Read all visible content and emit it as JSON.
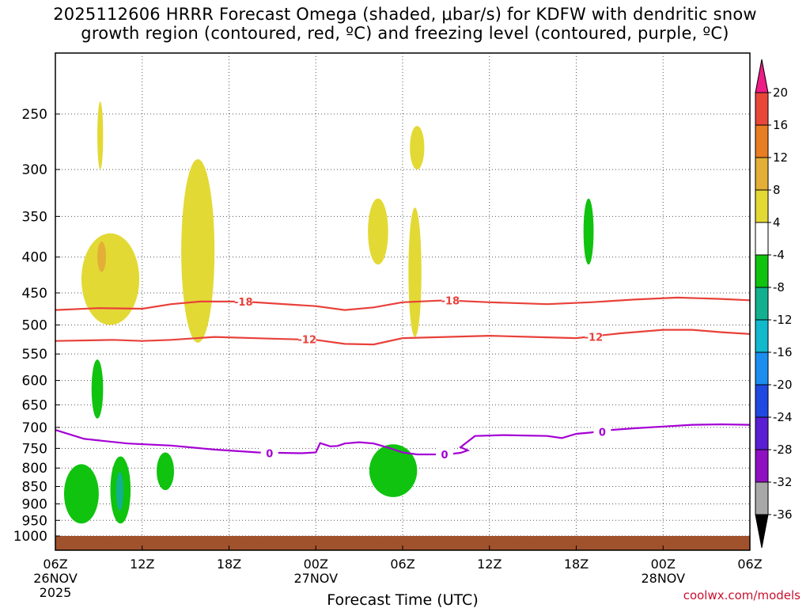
{
  "title": "2025112606 HRRR Forecast Omega (shaded, μbar/s) for KDFW with dendritic snow\ngrowth region (contoured, red, ºC) and freezing level (contoured, purple, ºC)",
  "credit": "coolwx.com/models",
  "chart_data": {
    "type": "time-height cross-section",
    "xlabel": "Forecast Time (UTC)",
    "x_hours_range": [
      0,
      48
    ],
    "x_ticks": [
      {
        "hour": 0,
        "label": "06Z",
        "sub": "26NOV",
        "sub2": "2025"
      },
      {
        "hour": 6,
        "label": "12Z"
      },
      {
        "hour": 12,
        "label": "18Z"
      },
      {
        "hour": 18,
        "label": "00Z",
        "sub": "27NOV"
      },
      {
        "hour": 24,
        "label": "06Z"
      },
      {
        "hour": 30,
        "label": "12Z"
      },
      {
        "hour": 36,
        "label": "18Z"
      },
      {
        "hour": 42,
        "label": "00Z",
        "sub": "28NOV"
      },
      {
        "hour": 48,
        "label": "06Z"
      }
    ],
    "y_levels_hpa": [
      250,
      300,
      350,
      400,
      450,
      500,
      550,
      600,
      650,
      700,
      750,
      800,
      850,
      900,
      950,
      1000
    ],
    "y_scale": "log-pressure",
    "ground_color": "#a0522d",
    "colorbar": {
      "labels": [
        "20",
        "16",
        "12",
        "8",
        "4",
        "-4",
        "-8",
        "-12",
        "-16",
        "-20",
        "-24",
        "-28",
        "-32",
        "-36"
      ],
      "colors_top_to_bottom": [
        "#ee1c86",
        "#e8473a",
        "#e87d22",
        "#e3af36",
        "#e3d935",
        "#ffffff",
        "#0fc30f",
        "#12b08f",
        "#12b8cc",
        "#1b8ef0",
        "#1f49e0",
        "#5a1fd2",
        "#8f11c2",
        "#a8a8a8",
        "#000000"
      ]
    },
    "contours": [
      {
        "name": "-18",
        "color": "#e8413a",
        "points": [
          [
            0,
            476
          ],
          [
            3,
            473
          ],
          [
            6,
            474
          ],
          [
            8,
            467
          ],
          [
            10,
            463
          ],
          [
            13,
            463
          ],
          [
            18,
            470
          ],
          [
            20,
            476
          ],
          [
            22,
            472
          ],
          [
            24,
            464
          ],
          [
            27,
            461
          ],
          [
            30,
            464
          ],
          [
            34,
            467
          ],
          [
            37,
            464
          ],
          [
            40,
            460
          ],
          [
            43,
            457
          ],
          [
            46,
            459
          ],
          [
            48,
            461
          ]
        ],
        "labels": [
          {
            "hour": 13,
            "hpa": 463
          },
          {
            "hour": 27.3,
            "hpa": 461
          }
        ]
      },
      {
        "name": "-12",
        "color": "#e8413a",
        "points": [
          [
            0,
            527
          ],
          [
            4,
            525
          ],
          [
            6,
            527
          ],
          [
            8,
            525
          ],
          [
            11,
            520
          ],
          [
            15,
            523
          ],
          [
            18,
            525
          ],
          [
            20,
            532
          ],
          [
            22,
            533
          ],
          [
            24,
            522
          ],
          [
            27,
            520
          ],
          [
            30,
            518
          ],
          [
            33,
            520
          ],
          [
            36,
            522
          ],
          [
            39,
            514
          ],
          [
            42,
            508
          ],
          [
            44,
            508
          ],
          [
            46,
            512
          ],
          [
            48,
            515
          ]
        ],
        "labels": [
          {
            "hour": 17.4,
            "hpa": 524
          },
          {
            "hour": 37.2,
            "hpa": 520
          }
        ]
      },
      {
        "name": "0",
        "color": "#a400d4",
        "points": [
          [
            0,
            706
          ],
          [
            2,
            727
          ],
          [
            5,
            738
          ],
          [
            8,
            743
          ],
          [
            11,
            753
          ],
          [
            14,
            760
          ],
          [
            17,
            762
          ],
          [
            18,
            760
          ],
          [
            18.3,
            737
          ],
          [
            19,
            745
          ],
          [
            19.5,
            744
          ],
          [
            20,
            738
          ],
          [
            21,
            735
          ],
          [
            22,
            738
          ],
          [
            23,
            748
          ],
          [
            24,
            760
          ],
          [
            25,
            765
          ],
          [
            26,
            765
          ],
          [
            27,
            765
          ],
          [
            28,
            761
          ],
          [
            28.5,
            755
          ],
          [
            28,
            747
          ],
          [
            29,
            720
          ],
          [
            31,
            718
          ],
          [
            34,
            720
          ],
          [
            35,
            725
          ],
          [
            36,
            715
          ],
          [
            37,
            712
          ],
          [
            38,
            707
          ],
          [
            40,
            702
          ],
          [
            42,
            698
          ],
          [
            44,
            694
          ],
          [
            46,
            693
          ],
          [
            48,
            694
          ]
        ],
        "labels": [
          {
            "hour": 14.8,
            "hpa": 762
          },
          {
            "hour": 26.9,
            "hpa": 765
          },
          {
            "hour": 37.8,
            "hpa": 710
          }
        ]
      }
    ],
    "omega_features": [
      {
        "sign": "up",
        "level": 4,
        "peak_level": 8,
        "hours": [
          1.8,
          5.8
        ],
        "hpa": [
          370,
          500
        ],
        "color": "#e3d935"
      },
      {
        "sign": "up",
        "level": 8,
        "hours": [
          2.9,
          3.5
        ],
        "hpa": [
          380,
          420
        ],
        "color": "#e3af36"
      },
      {
        "sign": "up",
        "level": 4,
        "hours": [
          2.9,
          3.3
        ],
        "hpa": [
          240,
          300
        ],
        "color": "#e3d935"
      },
      {
        "sign": "up",
        "level": 4,
        "hours": [
          8.7,
          11
        ],
        "hpa": [
          290,
          530
        ],
        "color": "#e3d935"
      },
      {
        "sign": "up",
        "level": 4,
        "hours": [
          21.6,
          23
        ],
        "hpa": [
          330,
          410
        ],
        "color": "#e3d935"
      },
      {
        "sign": "up",
        "level": 4,
        "hours": [
          24.5,
          25.5
        ],
        "hpa": [
          260,
          300
        ],
        "color": "#e3d935"
      },
      {
        "sign": "up",
        "level": 4,
        "hours": [
          24.4,
          25.3
        ],
        "hpa": [
          340,
          520
        ],
        "color": "#e3d935"
      },
      {
        "sign": "down",
        "level": -4,
        "hours": [
          2.5,
          3.3
        ],
        "hpa": [
          560,
          680
        ],
        "color": "#0fc30f"
      },
      {
        "sign": "down",
        "level": -4,
        "hours": [
          0.6,
          3
        ],
        "hpa": [
          790,
          960
        ],
        "color": "#0fc30f"
      },
      {
        "sign": "down",
        "level": -4,
        "hours": [
          3.8,
          5.2
        ],
        "hpa": [
          770,
          960
        ],
        "color": "#0fc30f"
      },
      {
        "sign": "down",
        "level": -8,
        "hours": [
          4.2,
          4.7
        ],
        "hpa": [
          810,
          920
        ],
        "color": "#12b08f"
      },
      {
        "sign": "down",
        "level": -4,
        "hours": [
          7,
          8.2
        ],
        "hpa": [
          760,
          860
        ],
        "color": "#0fc30f"
      },
      {
        "sign": "down",
        "level": -4,
        "hours": [
          21.7,
          25
        ],
        "hpa": [
          740,
          880
        ],
        "color": "#0fc30f"
      },
      {
        "sign": "down",
        "level": -4,
        "hours": [
          36.5,
          37.2
        ],
        "hpa": [
          330,
          410
        ],
        "color": "#0fc30f"
      }
    ]
  }
}
